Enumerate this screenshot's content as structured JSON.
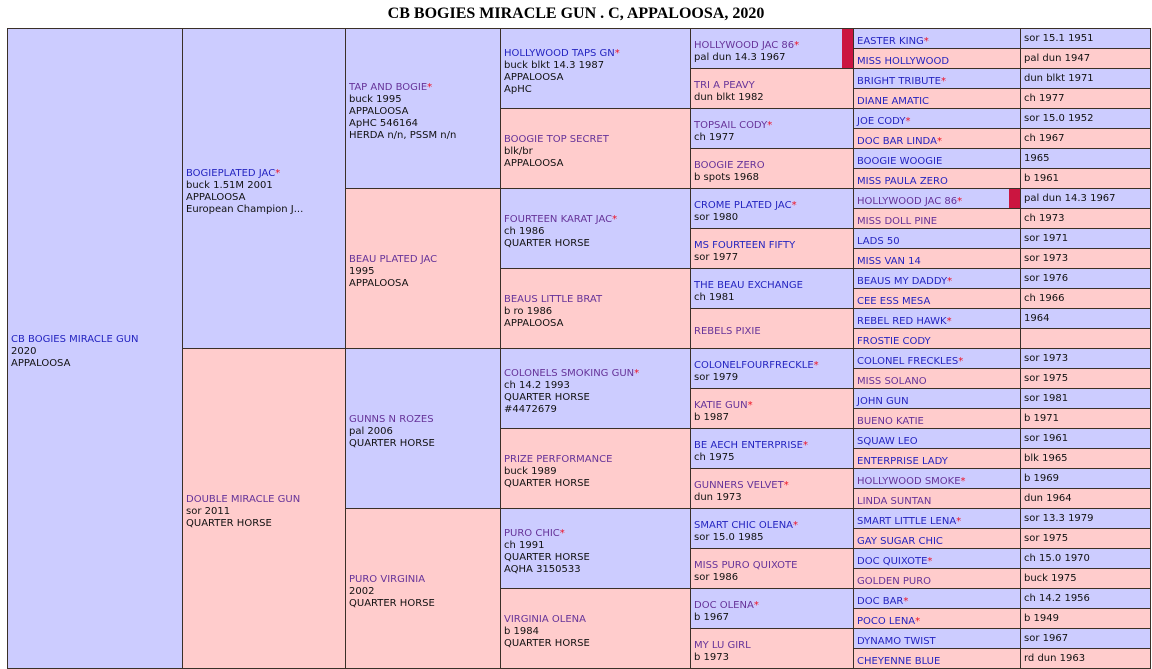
{
  "title": {
    "name": "CB BOGIES MIRACLE GUN",
    "suffix": " . C, APPALOOSA, 2020"
  },
  "colors": {
    "sire_bg": "#CCCCFF",
    "dam_bg": "#FFCCCC",
    "link_blue": "#2424C0",
    "link_visited": "#663399",
    "star_red": "#EE1122",
    "marker_red": "#CB1540",
    "border": "#3A3028"
  },
  "p": {
    "g1": [
      {
        "n": "CB BOGIES MIRACLE GUN",
        "s": "",
        "cls": "nm b",
        "i1": "2020",
        "i2": "APPALOOSA"
      }
    ],
    "g2": [
      {
        "n": "BOGIEPLATED JAC",
        "s": "*",
        "cls": "nm b",
        "i1": "buck 1.51M 2001",
        "i2": "APPALOOSA",
        "i3": "European Champion J..."
      },
      {
        "n": "DOUBLE MIRACLE GUN",
        "s": "",
        "cls": "nm p",
        "i1": "sor 2011",
        "i2": "QUARTER HORSE"
      }
    ],
    "g3": [
      {
        "n": "TAP AND BOGIE",
        "s": "*",
        "cls": "nm p",
        "i1": "buck 1995",
        "i2": "APPALOOSA",
        "i3": "ApHC 546164",
        "i4": "HERDA n/n, PSSM n/n"
      },
      {
        "n": "BEAU PLATED JAC",
        "s": "",
        "cls": "nm p",
        "i1": "1995",
        "i2": "APPALOOSA"
      },
      {
        "n": "GUNNS N ROZES",
        "s": "",
        "cls": "nm p",
        "i1": "pal 2006",
        "i2": "QUARTER HORSE"
      },
      {
        "n": "PURO VIRGINIA",
        "s": "",
        "cls": "nm p",
        "i1": "2002",
        "i2": "QUARTER HORSE"
      }
    ],
    "g4": [
      {
        "n": "HOLLYWOOD TAPS GN",
        "s": "*",
        "cls": "nm b",
        "i1": "buck blkt 14.3 1987",
        "i2": "APPALOOSA",
        "i3": "ApHC"
      },
      {
        "n": "BOOGIE TOP SECRET",
        "s": "",
        "cls": "nm p",
        "i1": "blk/br",
        "i2": "APPALOOSA"
      },
      {
        "n": "FOURTEEN KARAT JAC",
        "s": "*",
        "cls": "nm p",
        "i1": "ch 1986",
        "i2": "QUARTER HORSE"
      },
      {
        "n": "BEAUS LITTLE BRAT",
        "s": "",
        "cls": "nm p",
        "i1": "b ro 1986",
        "i2": "APPALOOSA"
      },
      {
        "n": "COLONELS SMOKING GUN",
        "s": "*",
        "cls": "nm p",
        "i1": "ch 14.2 1993",
        "i2": "QUARTER HORSE",
        "i3": "#4472679"
      },
      {
        "n": "PRIZE PERFORMANCE",
        "s": "",
        "cls": "nm p",
        "i1": "buck 1989",
        "i2": "QUARTER HORSE"
      },
      {
        "n": "PURO CHIC",
        "s": "*",
        "cls": "nm p",
        "i1": "ch 1991",
        "i2": "QUARTER HORSE",
        "i3": "AQHA 3150533"
      },
      {
        "n": "VIRGINIA OLENA",
        "s": "",
        "cls": "nm p",
        "i1": "b 1984",
        "i2": "QUARTER HORSE"
      }
    ],
    "g5": [
      {
        "n": "HOLLYWOOD JAC 86",
        "s": "*",
        "cls": "nm p",
        "i1": "pal dun 14.3 1967",
        "marker": true
      },
      {
        "n": "TRI A PEAVY",
        "s": "",
        "cls": "nm p",
        "i1": "dun blkt 1982"
      },
      {
        "n": "TOPSAIL CODY",
        "s": "*",
        "cls": "nm p",
        "i1": "ch 1977"
      },
      {
        "n": "BOOGIE ZERO",
        "s": "",
        "cls": "nm p",
        "i1": "b spots 1968"
      },
      {
        "n": "CROME PLATED JAC",
        "s": "*",
        "cls": "nm b",
        "i1": "sor 1980"
      },
      {
        "n": "MS FOURTEEN FIFTY",
        "s": "",
        "cls": "nm b",
        "i1": "sor 1977"
      },
      {
        "n": "THE BEAU EXCHANGE",
        "s": "",
        "cls": "nm b",
        "i1": "ch 1981"
      },
      {
        "n": "REBELS PIXIE",
        "s": "",
        "cls": "nm p",
        "i1": ""
      },
      {
        "n": "COLONELFOURFRECKLE",
        "s": "*",
        "cls": "nm b",
        "i1": "sor 1979"
      },
      {
        "n": "KATIE GUN",
        "s": "*",
        "cls": "nm p",
        "i1": "b 1987"
      },
      {
        "n": "BE AECH ENTERPRISE",
        "s": "*",
        "cls": "nm b",
        "i1": "ch 1975"
      },
      {
        "n": "GUNNERS VELVET",
        "s": "*",
        "cls": "nm p",
        "i1": "dun 1973"
      },
      {
        "n": "SMART CHIC OLENA",
        "s": "*",
        "cls": "nm b",
        "i1": "sor 15.0 1985"
      },
      {
        "n": "MISS PURO QUIXOTE",
        "s": "",
        "cls": "nm p",
        "i1": "sor 1986"
      },
      {
        "n": "DOC OLENA",
        "s": "*",
        "cls": "nm p",
        "i1": "b 1967"
      },
      {
        "n": "MY LU GIRL",
        "s": "",
        "cls": "nm p",
        "i1": "b 1973"
      }
    ],
    "g6": [
      {
        "n": "EASTER KING",
        "s": "*",
        "cls": "nm b",
        "d": "sor 15.1 1951"
      },
      {
        "n": "MISS HOLLYWOOD",
        "s": "",
        "cls": "nm b",
        "d": "pal dun 1947"
      },
      {
        "n": "BRIGHT TRIBUTE",
        "s": "*",
        "cls": "nm b",
        "d": "dun blkt 1971"
      },
      {
        "n": "DIANE AMATIC",
        "s": "",
        "cls": "nm b",
        "d": "ch 1977"
      },
      {
        "n": "JOE CODY",
        "s": "*",
        "cls": "nm b",
        "d": "sor 15.0 1952"
      },
      {
        "n": "DOC BAR LINDA",
        "s": "*",
        "cls": "nm b",
        "d": "ch 1967"
      },
      {
        "n": "BOOGIE WOOGIE",
        "s": "",
        "cls": "nm b",
        "d": "1965"
      },
      {
        "n": "MISS PAULA ZERO",
        "s": "",
        "cls": "nm b",
        "d": "b 1961"
      },
      {
        "n": "HOLLYWOOD JAC 86",
        "s": "*",
        "cls": "nm p",
        "d": "pal dun 14.3 1967",
        "marker": true
      },
      {
        "n": "MISS DOLL PINE",
        "s": "",
        "cls": "nm p",
        "d": "ch 1973"
      },
      {
        "n": "LADS 50",
        "s": "",
        "cls": "nm b",
        "d": "sor 1971"
      },
      {
        "n": "MISS VAN 14",
        "s": "",
        "cls": "nm b",
        "d": "sor 1973"
      },
      {
        "n": "BEAUS MY DADDY",
        "s": "*",
        "cls": "nm b",
        "d": "sor 1976"
      },
      {
        "n": "CEE ESS MESA",
        "s": "",
        "cls": "nm b",
        "d": "ch 1966"
      },
      {
        "n": "REBEL RED HAWK",
        "s": "*",
        "cls": "nm b",
        "d": "1964"
      },
      {
        "n": "FROSTIE CODY",
        "s": "",
        "cls": "nm b",
        "d": ""
      },
      {
        "n": "COLONEL FRECKLES",
        "s": "*",
        "cls": "nm b",
        "d": "sor 1973"
      },
      {
        "n": "MISS SOLANO",
        "s": "",
        "cls": "nm p",
        "d": "sor 1975"
      },
      {
        "n": "JOHN GUN",
        "s": "",
        "cls": "nm b",
        "d": "sor 1981"
      },
      {
        "n": "BUENO KATIE",
        "s": "",
        "cls": "nm p",
        "d": "b 1971"
      },
      {
        "n": "SQUAW LEO",
        "s": "",
        "cls": "nm b",
        "d": "sor 1961"
      },
      {
        "n": "ENTERPRISE LADY",
        "s": "",
        "cls": "nm b",
        "d": "blk 1965"
      },
      {
        "n": "HOLLYWOOD SMOKE",
        "s": "*",
        "cls": "nm p",
        "d": "b 1969"
      },
      {
        "n": "LINDA SUNTAN",
        "s": "",
        "cls": "nm p",
        "d": "dun 1964"
      },
      {
        "n": "SMART LITTLE LENA",
        "s": "*",
        "cls": "nm b",
        "d": "sor 13.3 1979"
      },
      {
        "n": "GAY SUGAR CHIC",
        "s": "",
        "cls": "nm b",
        "d": "sor 1975"
      },
      {
        "n": "DOC QUIXOTE",
        "s": "*",
        "cls": "nm b",
        "d": "ch 15.0 1970"
      },
      {
        "n": "GOLDEN PURO",
        "s": "",
        "cls": "nm p",
        "d": "buck 1975"
      },
      {
        "n": "DOC BAR",
        "s": "*",
        "cls": "nm b",
        "d": "ch 14.2 1956"
      },
      {
        "n": "POCO LENA",
        "s": "*",
        "cls": "nm b",
        "d": "b 1949"
      },
      {
        "n": "DYNAMO TWIST",
        "s": "",
        "cls": "nm b",
        "d": "sor 1967"
      },
      {
        "n": "CHEYENNE BLUE",
        "s": "",
        "cls": "nm b",
        "d": "rd dun 1963"
      }
    ]
  }
}
